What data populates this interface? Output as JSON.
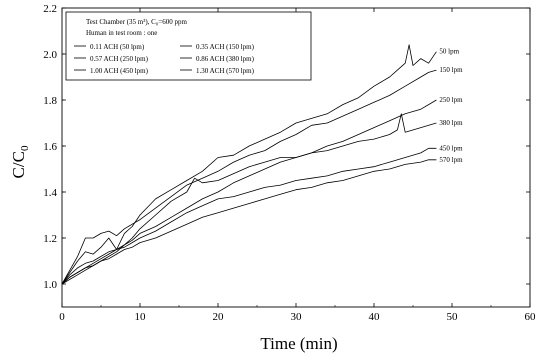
{
  "chart_data": {
    "type": "line",
    "xlabel": "Time (min)",
    "ylabel": "C/C₀",
    "ylabel_main": "C/C",
    "ylabel_sub": "0",
    "xlim": [
      0,
      60
    ],
    "ylim": [
      0.9,
      2.2
    ],
    "x_ticks": [
      0,
      10,
      20,
      30,
      40,
      50,
      60
    ],
    "y_ticks": [
      1.0,
      1.2,
      1.4,
      1.6,
      1.8,
      2.0,
      2.2
    ],
    "y_tick_labels": [
      "1.0",
      "1.2",
      "1.4",
      "1.6",
      "1.8",
      "2.0",
      "2.2"
    ],
    "grid": false,
    "legend": {
      "position": "top-left",
      "header_line1": "Test Chamber (35 m³), C₀=600 ppm",
      "header_line2": "Human in test room : one",
      "entries": [
        "0.11 ACH (50 lpm)",
        "0.35 ACH (150 lpm)",
        "0.57 ACH (250 lpm)",
        "0.86 ACH (380 lpm)",
        "1.00 ACH (450 lpm)",
        "1.30 ACH (570 lpm)"
      ]
    },
    "series": [
      {
        "name": "0.11 ACH (50 lpm)",
        "end_label": "50 lpm",
        "x": [
          0,
          1,
          2,
          3,
          4,
          5,
          6,
          7,
          8,
          9,
          10,
          12,
          14,
          16,
          18,
          20,
          22,
          24,
          26,
          28,
          30,
          32,
          34,
          36,
          38,
          40,
          42,
          43,
          44,
          44.5,
          45,
          46,
          47,
          48
        ],
        "y": [
          1.0,
          1.05,
          1.1,
          1.14,
          1.13,
          1.16,
          1.2,
          1.15,
          1.22,
          1.25,
          1.3,
          1.37,
          1.41,
          1.45,
          1.49,
          1.55,
          1.56,
          1.6,
          1.63,
          1.66,
          1.7,
          1.72,
          1.74,
          1.78,
          1.81,
          1.86,
          1.9,
          1.93,
          1.96,
          2.04,
          1.95,
          1.98,
          1.96,
          2.01
        ]
      },
      {
        "name": "0.35 ACH (150 lpm)",
        "end_label": "150 lpm",
        "x": [
          0,
          1,
          2,
          3,
          4,
          5,
          6,
          7,
          8,
          9,
          10,
          12,
          14,
          16,
          18,
          20,
          22,
          24,
          26,
          28,
          30,
          32,
          34,
          36,
          38,
          40,
          42,
          44,
          46,
          47,
          48
        ],
        "y": [
          1.0,
          1.06,
          1.12,
          1.2,
          1.2,
          1.22,
          1.23,
          1.21,
          1.24,
          1.26,
          1.28,
          1.33,
          1.38,
          1.43,
          1.46,
          1.49,
          1.53,
          1.56,
          1.58,
          1.62,
          1.65,
          1.69,
          1.7,
          1.73,
          1.76,
          1.79,
          1.82,
          1.86,
          1.9,
          1.92,
          1.93
        ]
      },
      {
        "name": "0.57 ACH (250 lpm)",
        "end_label": "250 lpm",
        "x": [
          0,
          1,
          2,
          3,
          4,
          5,
          6,
          7,
          8,
          9,
          10,
          12,
          14,
          16,
          18,
          20,
          22,
          24,
          26,
          28,
          30,
          32,
          34,
          36,
          38,
          40,
          42,
          44,
          46,
          47,
          48
        ],
        "y": [
          1.0,
          1.04,
          1.07,
          1.09,
          1.1,
          1.12,
          1.14,
          1.15,
          1.17,
          1.19,
          1.22,
          1.25,
          1.29,
          1.33,
          1.37,
          1.4,
          1.44,
          1.47,
          1.5,
          1.53,
          1.55,
          1.57,
          1.6,
          1.62,
          1.65,
          1.68,
          1.71,
          1.74,
          1.76,
          1.78,
          1.8
        ]
      },
      {
        "name": "0.86 ACH (380 lpm)",
        "end_label": "380 lpm",
        "x": [
          0,
          1,
          2,
          3,
          4,
          5,
          6,
          7,
          8,
          9,
          10,
          12,
          14,
          16,
          17,
          18,
          20,
          22,
          24,
          26,
          28,
          30,
          32,
          34,
          36,
          38,
          40,
          42,
          43,
          43.5,
          44,
          46,
          48
        ],
        "y": [
          1.0,
          1.03,
          1.05,
          1.07,
          1.08,
          1.1,
          1.12,
          1.14,
          1.17,
          1.2,
          1.24,
          1.3,
          1.36,
          1.4,
          1.46,
          1.44,
          1.45,
          1.48,
          1.51,
          1.53,
          1.55,
          1.55,
          1.57,
          1.58,
          1.6,
          1.62,
          1.63,
          1.65,
          1.67,
          1.74,
          1.66,
          1.68,
          1.7
        ]
      },
      {
        "name": "1.00 ACH (450 lpm)",
        "end_label": "450 lpm",
        "x": [
          0,
          1,
          2,
          3,
          4,
          5,
          6,
          7,
          8,
          9,
          10,
          12,
          14,
          16,
          18,
          20,
          22,
          24,
          26,
          28,
          30,
          32,
          34,
          36,
          38,
          40,
          42,
          44,
          46,
          47,
          48
        ],
        "y": [
          1.0,
          1.03,
          1.05,
          1.07,
          1.09,
          1.11,
          1.13,
          1.15,
          1.16,
          1.18,
          1.2,
          1.23,
          1.27,
          1.31,
          1.34,
          1.37,
          1.38,
          1.4,
          1.42,
          1.43,
          1.45,
          1.46,
          1.47,
          1.49,
          1.5,
          1.51,
          1.53,
          1.55,
          1.57,
          1.59,
          1.59
        ]
      },
      {
        "name": "1.30 ACH (570 lpm)",
        "end_label": "570 lpm",
        "x": [
          0,
          1,
          2,
          3,
          4,
          5,
          6,
          7,
          8,
          9,
          10,
          12,
          14,
          16,
          18,
          20,
          22,
          24,
          26,
          28,
          30,
          32,
          34,
          36,
          38,
          40,
          42,
          44,
          46,
          47,
          48
        ],
        "y": [
          1.0,
          1.02,
          1.04,
          1.06,
          1.08,
          1.1,
          1.11,
          1.13,
          1.15,
          1.16,
          1.18,
          1.2,
          1.23,
          1.26,
          1.29,
          1.31,
          1.33,
          1.35,
          1.37,
          1.39,
          1.41,
          1.42,
          1.44,
          1.45,
          1.47,
          1.49,
          1.5,
          1.52,
          1.53,
          1.54,
          1.54
        ]
      }
    ]
  }
}
